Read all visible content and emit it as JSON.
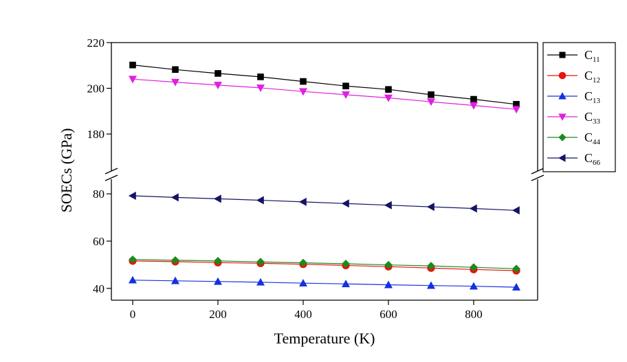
{
  "chart_data": {
    "type": "line",
    "xlabel": "Temperature (K)",
    "ylabel": "SOECs (GPa)",
    "x": [
      0,
      100,
      200,
      300,
      400,
      500,
      600,
      700,
      800,
      900
    ],
    "xlim": [
      -50,
      950
    ],
    "xticks": [
      0,
      200,
      400,
      600,
      800
    ],
    "y_axis_break": {
      "lower_range": [
        35,
        85
      ],
      "upper_range": [
        165,
        220
      ],
      "lower_ticks": [
        40,
        60,
        80
      ],
      "upper_ticks": [
        180,
        200,
        220
      ]
    },
    "legend": {
      "position": "right"
    },
    "series": [
      {
        "name": "C11",
        "label_main": "C",
        "label_sub": "11",
        "marker": "square",
        "color": "#000000",
        "values": [
          210.2,
          208.2,
          206.5,
          205.0,
          203.0,
          201.0,
          199.5,
          197.2,
          195.2,
          193.0
        ]
      },
      {
        "name": "C12",
        "label_main": "C",
        "label_sub": "12",
        "marker": "circle",
        "color": "#e8140c",
        "values": [
          51.6,
          51.3,
          50.9,
          50.6,
          50.2,
          49.7,
          49.2,
          48.6,
          48.0,
          47.5
        ]
      },
      {
        "name": "C13",
        "label_main": "C",
        "label_sub": "13",
        "marker": "triangle-up",
        "color": "#1530e0",
        "values": [
          43.5,
          43.2,
          42.9,
          42.6,
          42.2,
          41.9,
          41.5,
          41.2,
          40.9,
          40.5
        ]
      },
      {
        "name": "C33",
        "label_main": "C",
        "label_sub": "33",
        "marker": "triangle-down",
        "color": "#e020e0",
        "values": [
          204.0,
          202.7,
          201.4,
          200.2,
          198.6,
          197.2,
          195.8,
          194.1,
          192.5,
          190.8
        ]
      },
      {
        "name": "C44",
        "label_main": "C",
        "label_sub": "44",
        "marker": "diamond",
        "color": "#1d8a1d",
        "values": [
          52.2,
          51.9,
          51.6,
          51.2,
          50.8,
          50.4,
          49.9,
          49.5,
          48.9,
          48.3
        ]
      },
      {
        "name": "C66",
        "label_main": "C",
        "label_sub": "66",
        "marker": "triangle-left",
        "color": "#141466",
        "values": [
          79.2,
          78.5,
          77.9,
          77.3,
          76.6,
          75.9,
          75.2,
          74.5,
          73.8,
          73.0
        ]
      }
    ]
  }
}
